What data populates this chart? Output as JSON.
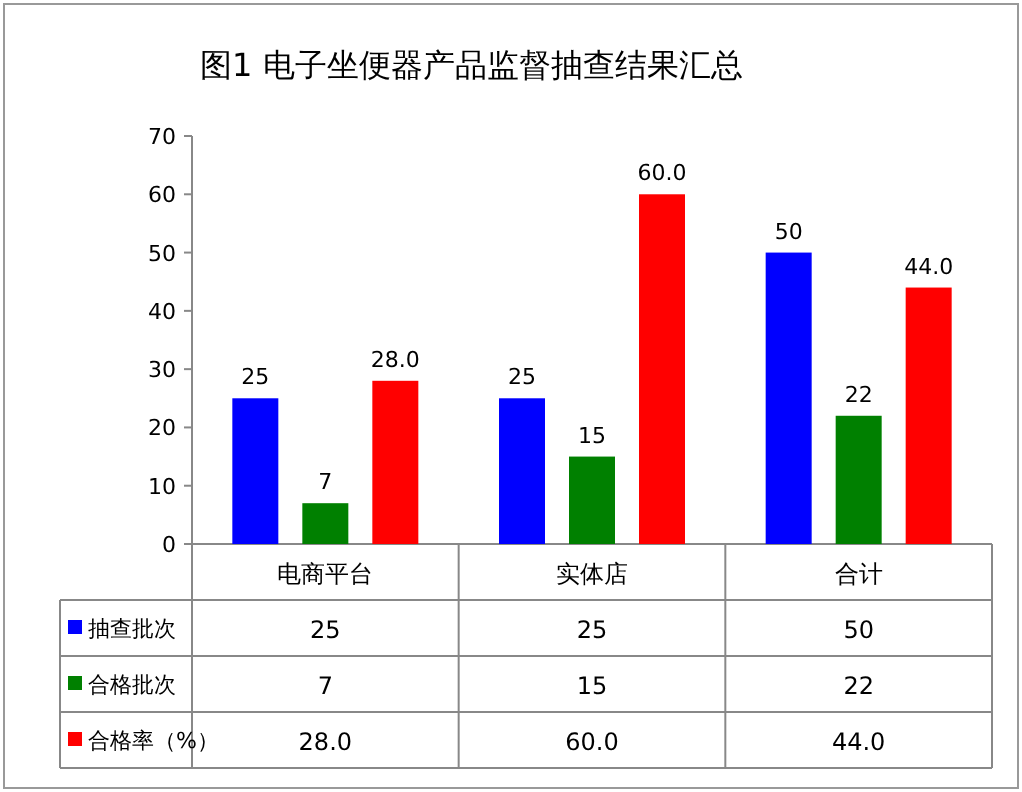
{
  "chart_data": {
    "type": "bar",
    "title": "图1  电子坐便器产品监督抽查结果汇总",
    "categories": [
      "电商平台",
      "实体店",
      "合计"
    ],
    "series": [
      {
        "name": "抽查批次",
        "color": "#0000ff",
        "values": [
          25,
          25,
          50
        ],
        "value_labels": [
          "25",
          "25",
          "50"
        ]
      },
      {
        "name": "合格批次",
        "color": "#008000",
        "values": [
          7,
          15,
          22
        ],
        "value_labels": [
          "7",
          "15",
          "22"
        ]
      },
      {
        "name": "合格率（%）",
        "color": "#ff0000",
        "values": [
          28.0,
          60.0,
          44.0
        ],
        "value_labels": [
          "28.0",
          "60.0",
          "44.0"
        ]
      }
    ],
    "ylim": [
      0,
      70
    ],
    "yticks": [
      0,
      10,
      20,
      30,
      40,
      50,
      60,
      70
    ],
    "grid": false,
    "legend": "bottom"
  }
}
